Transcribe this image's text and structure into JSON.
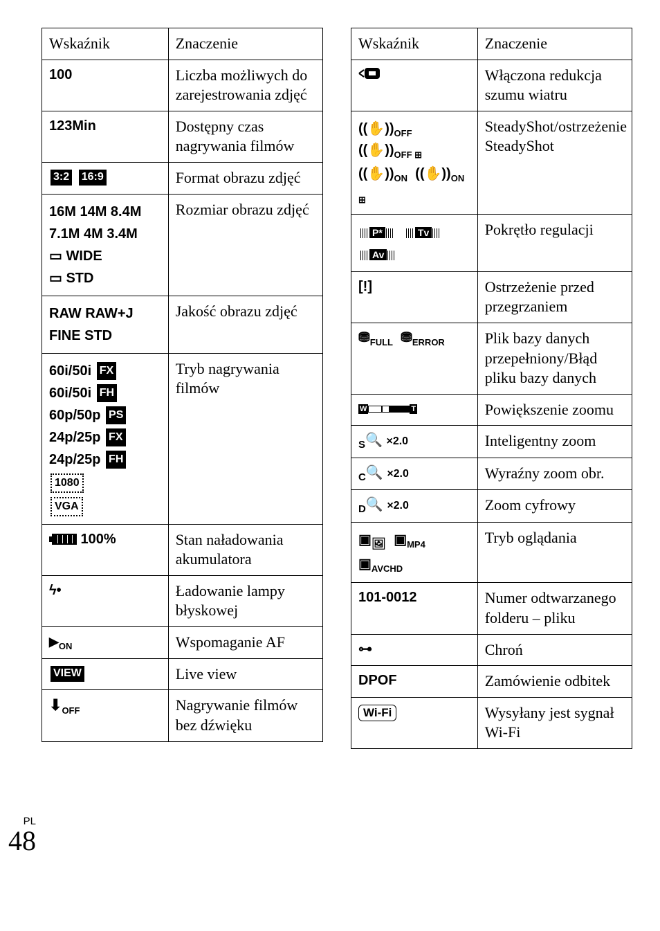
{
  "page": {
    "lang": "PL",
    "number": "48"
  },
  "headers": {
    "indicator": "Wskaźnik",
    "meaning": "Znaczenie"
  },
  "left_rows": [
    {
      "ind_html": "100",
      "meaning": "Liczba możliwych do zarejestrowania zdjęć"
    },
    {
      "ind_html": "123Min",
      "meaning": "Dostępny czas nagrywania filmów"
    },
    {
      "ind_html": "<span class='tag'>3:2</span> <span class='tag'>16:9</span>",
      "meaning": "Format obrazu zdjęć"
    },
    {
      "ind_html": "<span class='ind-line'>16M 14M 8.4M</span><span class='ind-line'>7.1M 4M 3.4M</span><span class='ind-line'>▭ WIDE</span><span class='ind-line'>▭ STD</span>",
      "meaning": "Rozmiar obrazu zdjęć"
    },
    {
      "ind_html": "<span class='ind-line'>RAW RAW+J</span><span class='ind-line'>FINE STD</span>",
      "meaning": "Jakość obrazu zdjęć"
    },
    {
      "ind_html": "<span class='ind-line'>60i/50i <span class='tag'>FX</span></span><span class='ind-line'>60i/50i <span class='tag'>FH</span></span><span class='ind-line'>60p/50p <span class='tag'>PS</span></span><span class='ind-line'>24p/25p <span class='tag'>FX</span></span><span class='ind-line'>24p/25p <span class='tag'>FH</span></span><span class='ind-line'><span class='tag-outline'>1080</span></span><span class='ind-line'><span class='tag-outline'>VGA</span></span>",
      "meaning": "Tryb nagrywania filmów"
    },
    {
      "ind_html": "<span class='battery'><span class='nub'></span><span class='body'></span></span> 100%",
      "meaning": "Stan naładowania akumulatora"
    },
    {
      "ind_html": "ϟ•",
      "meaning": "Ładowanie lampy błyskowej"
    },
    {
      "ind_html": "<span class='af-icon'></span><span class='sub'>ON</span>",
      "meaning": "Wspomaganie AF"
    },
    {
      "ind_html": "<span class='tag'>VIEW</span>",
      "meaning": "Live view"
    },
    {
      "ind_html": "<b style='font-size:22px'>⬇</b><span class='sub'>OFF</span>",
      "meaning": "Nagrywanie filmów bez dźwięku"
    }
  ],
  "right_rows": [
    {
      "ind_html": "<svg data-name='wind-filter-icon' width='34' height='22' viewBox='0 0 34 22'><g stroke='#000' stroke-width='2' fill='none'><rect x='10' y='4' width='20' height='14' rx='3' fill='#000'/><rect x='14' y='7' width='12' height='8' fill='#fff'/><path d='M1 11 L8 6 M1 11 L8 16'/></g></svg>",
      "meaning": "Włączona redukcja szumu wiatru"
    },
    {
      "ind_html": "<span class='ind-line'>((✋))<span class='sub'>OFF</span>&nbsp; ((✋))<span class='sub'>OFF ⊞</span></span><span class='ind-line'>((✋))<span class='sub'>ON</span>&nbsp; ((✋))<span class='sub'>ON ⊞</span></span>",
      "meaning": "SteadyShot/ostrzeżenie SteadyShot"
    },
    {
      "ind_html": "<span class='ind-line'><span class='dial'><span>P*</span></span>&nbsp;&nbsp;<span class='dial'><span>Tv</span></span></span><span class='ind-line'><span class='dial'><span>Av</span></span></span>",
      "meaning": "Pokrętło regulacji"
    },
    {
      "ind_html": "[<b>!</b>]",
      "meaning": "Ostrzeżenie przed przegrzaniem"
    },
    {
      "ind_html": "<b style='font-size:20px'>⛃</b><span class='sub'>FULL</span>&nbsp; <b style='font-size:20px'>⛃</b><span class='sub'>ERROR</span>",
      "meaning": "Plik bazy danych przepełniony/Błąd pliku bazy danych"
    },
    {
      "ind_html": "<span class='zoom-bar'><span class='zb-cap'>W</span><span class='zb-seg'></span><span class='zb-seg half'></span><span class='zb-seg filled'></span><span class='zb-cap'>T</span></span>",
      "meaning": "Powiększenie zoomu"
    },
    {
      "ind_html": "<span class='sub' style='font-size:15px'>S</span>🔍 <span style='font-size:16px'>×2.0</span>",
      "meaning": "Inteligentny zoom"
    },
    {
      "ind_html": "<span class='sub' style='font-size:15px'>C</span>🔍 <span style='font-size:16px'>×2.0</span>",
      "meaning": "Wyraźny zoom obr."
    },
    {
      "ind_html": "<span class='sub' style='font-size:15px'>D</span>🔍 <span style='font-size:16px'>×2.0</span>",
      "meaning": "Zoom cyfrowy"
    },
    {
      "ind_html": "<span class='ind-line'><b>▣</b><sub>🖼</sub>&nbsp; <b>▣</b><span class='sub'>MP4</span></span><span class='ind-line'><b>▣</b><span class='sub'>AVCHD</span></span>",
      "meaning": "Tryb oglądania"
    },
    {
      "ind_html": "101-0012",
      "meaning": "Numer odtwarzanego folderu – pliku"
    },
    {
      "ind_html": "<span class='key-icon'>⊶</span>",
      "meaning": "Chroń"
    },
    {
      "ind_html": "DPOF",
      "meaning": "Zamówienie odbitek"
    },
    {
      "ind_html": "<span class='wifi-box'>Wi-Fi</span>",
      "meaning": "Wysyłany jest sygnał Wi-Fi"
    }
  ]
}
